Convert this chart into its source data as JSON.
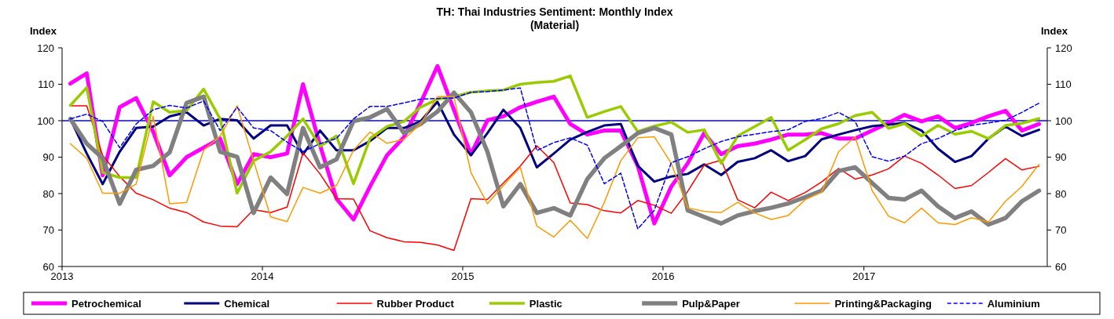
{
  "chart_data": {
    "type": "line",
    "title": "TH: Thai Industries Sentiment: Monthly Index",
    "subtitle": "(Material)",
    "ylabel": "Index",
    "y2label": "Index",
    "x": [
      "2013-01-16",
      "2013-02-15",
      "2013-03-16",
      "2013-04-16",
      "2013-05-16",
      "2013-06-16",
      "2013-07-16",
      "2013-08-16",
      "2013-09-16",
      "2013-10-16",
      "2013-11-16",
      "2013-12-16",
      "2014-01-16",
      "2014-02-15",
      "2014-03-16",
      "2014-04-16",
      "2014-05-16",
      "2014-06-16",
      "2014-07-16",
      "2014-08-16",
      "2014-09-16",
      "2014-10-16",
      "2014-11-16",
      "2014-12-16",
      "2015-01-16",
      "2015-02-15",
      "2015-03-16",
      "2015-04-16",
      "2015-05-16",
      "2015-06-16",
      "2015-07-16",
      "2015-08-16",
      "2015-09-16",
      "2015-10-16",
      "2015-11-16",
      "2015-12-16",
      "2016-01-16",
      "2016-02-15",
      "2016-03-16",
      "2016-04-16",
      "2016-05-16",
      "2016-06-16",
      "2016-07-16",
      "2016-08-16",
      "2016-09-16",
      "2016-10-16",
      "2016-11-16",
      "2016-12-16",
      "2017-01-16",
      "2017-02-15",
      "2017-03-16",
      "2017-04-16",
      "2017-05-16",
      "2017-06-16",
      "2017-07-16",
      "2017-08-16",
      "2017-09-16",
      "2017-10-16",
      "2017-11-16"
    ],
    "xlim": [
      "2013-01-01",
      "2017-12-01"
    ],
    "xticks": [
      "2013",
      "2014",
      "2015",
      "2016",
      "2017"
    ],
    "ylim": [
      60,
      120
    ],
    "yticks": [
      60,
      70,
      80,
      90,
      100,
      110,
      120
    ],
    "y2lim": [
      60,
      120
    ],
    "y2ticks": [
      60,
      70,
      80,
      90,
      100,
      110,
      120
    ],
    "grid": false,
    "legend": "bottom",
    "marker": "none",
    "ref_lines": [
      {
        "axis": "y",
        "value": 100,
        "color": "#0000ff",
        "line_style": "solid"
      }
    ],
    "series": [
      {
        "name": "Petrochemical",
        "color": "#ff00ff",
        "line_style": "solid",
        "values": [
          110.2,
          113,
          85,
          103.7,
          106.2,
          97,
          85,
          90,
          92.6,
          95.1,
          82.6,
          90.8,
          90,
          91,
          110,
          93.3,
          78.6,
          72.9,
          81.9,
          90.5,
          95.5,
          104.8,
          115,
          103,
          90.8,
          100.1,
          101.2,
          103.7,
          105.2,
          106.6,
          99.1,
          96.2,
          97.3,
          97.3,
          87.6,
          71.8,
          81.9,
          88.3,
          96.6,
          90.8,
          93,
          93.7,
          94.8,
          96.2,
          96.2,
          96.6,
          95.1,
          95.1,
          97.3,
          99.4,
          101.6,
          99.8,
          101.2,
          98,
          99.4,
          101.2,
          102.7,
          97.3,
          99.1
        ]
      },
      {
        "name": "Chemical",
        "color": "#000080",
        "line_style": "solid",
        "values": [
          100.5,
          91,
          82.6,
          91.5,
          98,
          98.4,
          101.2,
          102.3,
          98.7,
          100.5,
          100.1,
          95.1,
          98.7,
          98.7,
          90.8,
          97.3,
          91.9,
          91.9,
          94.4,
          98,
          98,
          99.8,
          105.2,
          96.2,
          90.5,
          96.6,
          103,
          98,
          87.2,
          91,
          94.8,
          96.9,
          98.7,
          99.1,
          87.6,
          83.3,
          84.7,
          85.4,
          88,
          85.1,
          88.7,
          89.7,
          91.9,
          88.9,
          90.3,
          94.9,
          96.2,
          97.4,
          98.5,
          98.9,
          99.4,
          97.3,
          92.3,
          88.7,
          90.3,
          95.1,
          98.4,
          95.8,
          97.5
        ]
      },
      {
        "name": "Rubber Product",
        "color": "#ff0000",
        "line_style": "solid",
        "values": [
          104.1,
          104.1,
          90.5,
          84.7,
          80.1,
          78.3,
          76,
          74.8,
          72.2,
          71.1,
          70.9,
          75.6,
          74.8,
          76.3,
          91.2,
          85.4,
          78.6,
          78.5,
          69.8,
          67.9,
          66.8,
          66.6,
          65.9,
          64.4,
          78.6,
          78.4,
          82.9,
          87.6,
          93.1,
          88.5,
          77.4,
          77,
          75.3,
          74.7,
          78.1,
          76.8,
          74.6,
          80.6,
          87.8,
          89.2,
          78.3,
          76.1,
          80.4,
          78.1,
          80.3,
          83.2,
          86.9,
          84,
          85.1,
          86.8,
          90.3,
          88.3,
          85.1,
          81.4,
          82.2,
          85.8,
          89.6,
          86.5,
          87.5
        ]
      },
      {
        "name": "Plastic",
        "color": "#99cc00",
        "line_style": "solid",
        "values": [
          104.2,
          109.1,
          85.8,
          84.4,
          84.4,
          105.2,
          102.3,
          102.8,
          108.7,
          100.5,
          80.1,
          89,
          91.5,
          95.8,
          100.5,
          93,
          95.8,
          82.7,
          95.1,
          98.4,
          99.8,
          103.7,
          105.9,
          106.6,
          107.8,
          108.2,
          108.4,
          110,
          110.5,
          110.8,
          112.3,
          100.9,
          102.5,
          103.9,
          97,
          98.5,
          99.6,
          96.8,
          97.5,
          88.3,
          95.8,
          98.4,
          100.9,
          91.9,
          94.8,
          97.8,
          99.2,
          101.4,
          102.3,
          97.9,
          99.2,
          95.8,
          98.7,
          96.3,
          97.1,
          95.1,
          98.7,
          99.3,
          100.6
        ]
      },
      {
        "name": "Pulp&Paper",
        "color": "#808080",
        "line_style": "solid",
        "values": [
          100.5,
          93.7,
          89.7,
          77.2,
          86.5,
          87.6,
          91.3,
          104.9,
          106.6,
          91.5,
          90.1,
          74.7,
          84.4,
          79.9,
          98,
          87.2,
          89.4,
          99.9,
          100.9,
          103.2,
          96.6,
          99.1,
          102.5,
          107.7,
          102.3,
          91.5,
          76.5,
          82.6,
          74.7,
          76,
          74,
          84,
          89.7,
          93,
          96.6,
          98,
          96.2,
          75.4,
          73.6,
          71.8,
          74,
          75.2,
          76.1,
          77.3,
          79,
          80.8,
          86.2,
          87.2,
          82.9,
          78.8,
          78.4,
          80.8,
          76.5,
          73.3,
          75.1,
          71.5,
          73.3,
          77.9,
          80.8
        ]
      },
      {
        "name": "Printing&Packaging",
        "color": "#ff9900",
        "line_style": "solid",
        "values": [
          93.7,
          89.7,
          80.1,
          80.1,
          82.6,
          101.2,
          77.2,
          77.6,
          91.9,
          95.8,
          104.1,
          89,
          73.6,
          72.3,
          81.7,
          80.1,
          82.2,
          91.9,
          96.9,
          93.8,
          94.9,
          99.1,
          106.6,
          106.6,
          85.8,
          77.2,
          82.2,
          87.2,
          71.1,
          68.1,
          72.7,
          67.7,
          77.6,
          89,
          95.3,
          95.6,
          88.3,
          76.1,
          75.1,
          74.8,
          77.6,
          74.7,
          72.9,
          74,
          78.3,
          80.4,
          91.5,
          95.6,
          80.8,
          73.8,
          72,
          76,
          72,
          71.5,
          73.4,
          72.2,
          77.9,
          82,
          88
        ]
      },
      {
        "name": "Aluminium",
        "color": "#0000ff",
        "line_style": "dashed",
        "values": [
          100.5,
          101.8,
          99.8,
          92.6,
          99.1,
          103,
          104.2,
          103.5,
          105.4,
          97.3,
          103.7,
          98,
          97.3,
          94.1,
          91.5,
          93.7,
          95.1,
          100.5,
          103.9,
          103.9,
          104.9,
          105.9,
          106.1,
          106.2,
          107.8,
          108,
          108.4,
          109,
          91.8,
          94,
          95.3,
          93.3,
          82.7,
          85.6,
          70.3,
          75.4,
          88.5,
          90.1,
          92.3,
          94.3,
          95.6,
          96.3,
          97,
          97.5,
          99.8,
          100.6,
          102.3,
          99.8,
          90.1,
          88.9,
          90.3,
          93.7,
          95.1,
          97.3,
          98.7,
          99.4,
          100.1,
          102.3,
          104.8
        ]
      }
    ]
  }
}
